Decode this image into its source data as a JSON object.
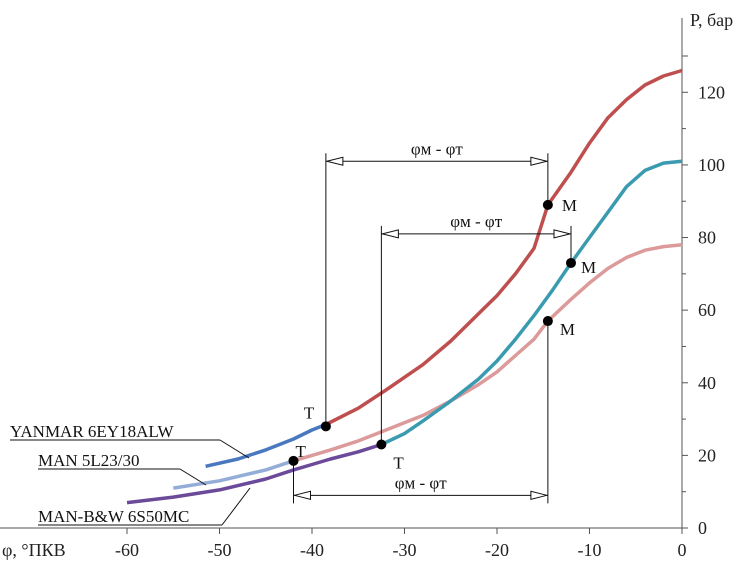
{
  "chart_data": {
    "type": "line",
    "xlabel": "φ, °ПКВ",
    "ylabel": "P, бар",
    "xlim": [
      -60,
      0
    ],
    "ylim": [
      0,
      130
    ],
    "x_ticks": [
      -60,
      -50,
      -40,
      -30,
      -20,
      -10,
      0
    ],
    "y_ticks": [
      0,
      20,
      40,
      60,
      80,
      100,
      120
    ],
    "grid": false,
    "series": [
      {
        "name": "YANMAR 6EY18ALW",
        "color_a": "#4a78be",
        "color_b": "#bf4f4f",
        "x": [
          -51.5,
          -48,
          -45,
          -42,
          -40,
          -38.5,
          -35,
          -32,
          -28,
          -25,
          -22,
          -20,
          -18,
          -16,
          -14.5,
          -12,
          -10,
          -8,
          -6,
          -4,
          -2,
          0
        ],
        "y": [
          17,
          19,
          21.5,
          24.5,
          27,
          28.5,
          33,
          38,
          45,
          51.5,
          59,
          64,
          70,
          77,
          89,
          98,
          106,
          113,
          118,
          122,
          124.5,
          126
        ]
      },
      {
        "name": "MAN 5L23/30",
        "color_a": "#94add8",
        "color_b": "#dc9a9a",
        "x": [
          -55,
          -50,
          -45,
          -42,
          -40,
          -38,
          -35,
          -32,
          -28,
          -25,
          -22,
          -20,
          -18,
          -16,
          -14.5,
          -12,
          -10,
          -8,
          -6,
          -4,
          -2,
          0
        ],
        "y": [
          11,
          13,
          16,
          18.5,
          20,
          21.5,
          24,
          27,
          31,
          35,
          39.5,
          43,
          47.5,
          52,
          57,
          63,
          67.5,
          71.5,
          74.5,
          76.5,
          77.5,
          78
        ]
      },
      {
        "name": "MAN-B&W 6S50MC",
        "color_a": "#6b4a9a",
        "color_b": "#3a9bb0",
        "x": [
          -60,
          -55,
          -50,
          -45,
          -42,
          -40,
          -38,
          -35,
          -32.5,
          -30,
          -28,
          -25,
          -22,
          -20,
          -18,
          -16,
          -14,
          -12,
          -10,
          -8,
          -6,
          -4,
          -2,
          0
        ],
        "y": [
          7,
          8.5,
          10.5,
          13.5,
          16,
          17.5,
          19,
          21,
          23,
          26,
          29.5,
          35,
          41,
          46,
          52,
          58.5,
          65.5,
          73,
          80,
          87,
          94,
          98.5,
          100.5,
          101
        ]
      }
    ],
    "points": [
      {
        "label": "T",
        "x": -38.5,
        "y": 28
      },
      {
        "label": "M",
        "x": -14.5,
        "y": 89
      },
      {
        "label": "T",
        "x": -32.5,
        "y": 23
      },
      {
        "label": "M",
        "x": -12,
        "y": 73
      },
      {
        "label": "T",
        "x": -42,
        "y": 18.5
      },
      {
        "label": "M",
        "x": -14.5,
        "y": 57
      }
    ],
    "intervals": [
      {
        "label": "φм - φт",
        "x_start": -38.5,
        "x_end": -14.5,
        "y_level": 101
      },
      {
        "label": "φм - φт",
        "x_start": -32.5,
        "x_end": -12,
        "y_level": 81
      },
      {
        "label": "φм - φт",
        "x_start": -42,
        "x_end": -14.5,
        "y_level": 9
      }
    ]
  }
}
